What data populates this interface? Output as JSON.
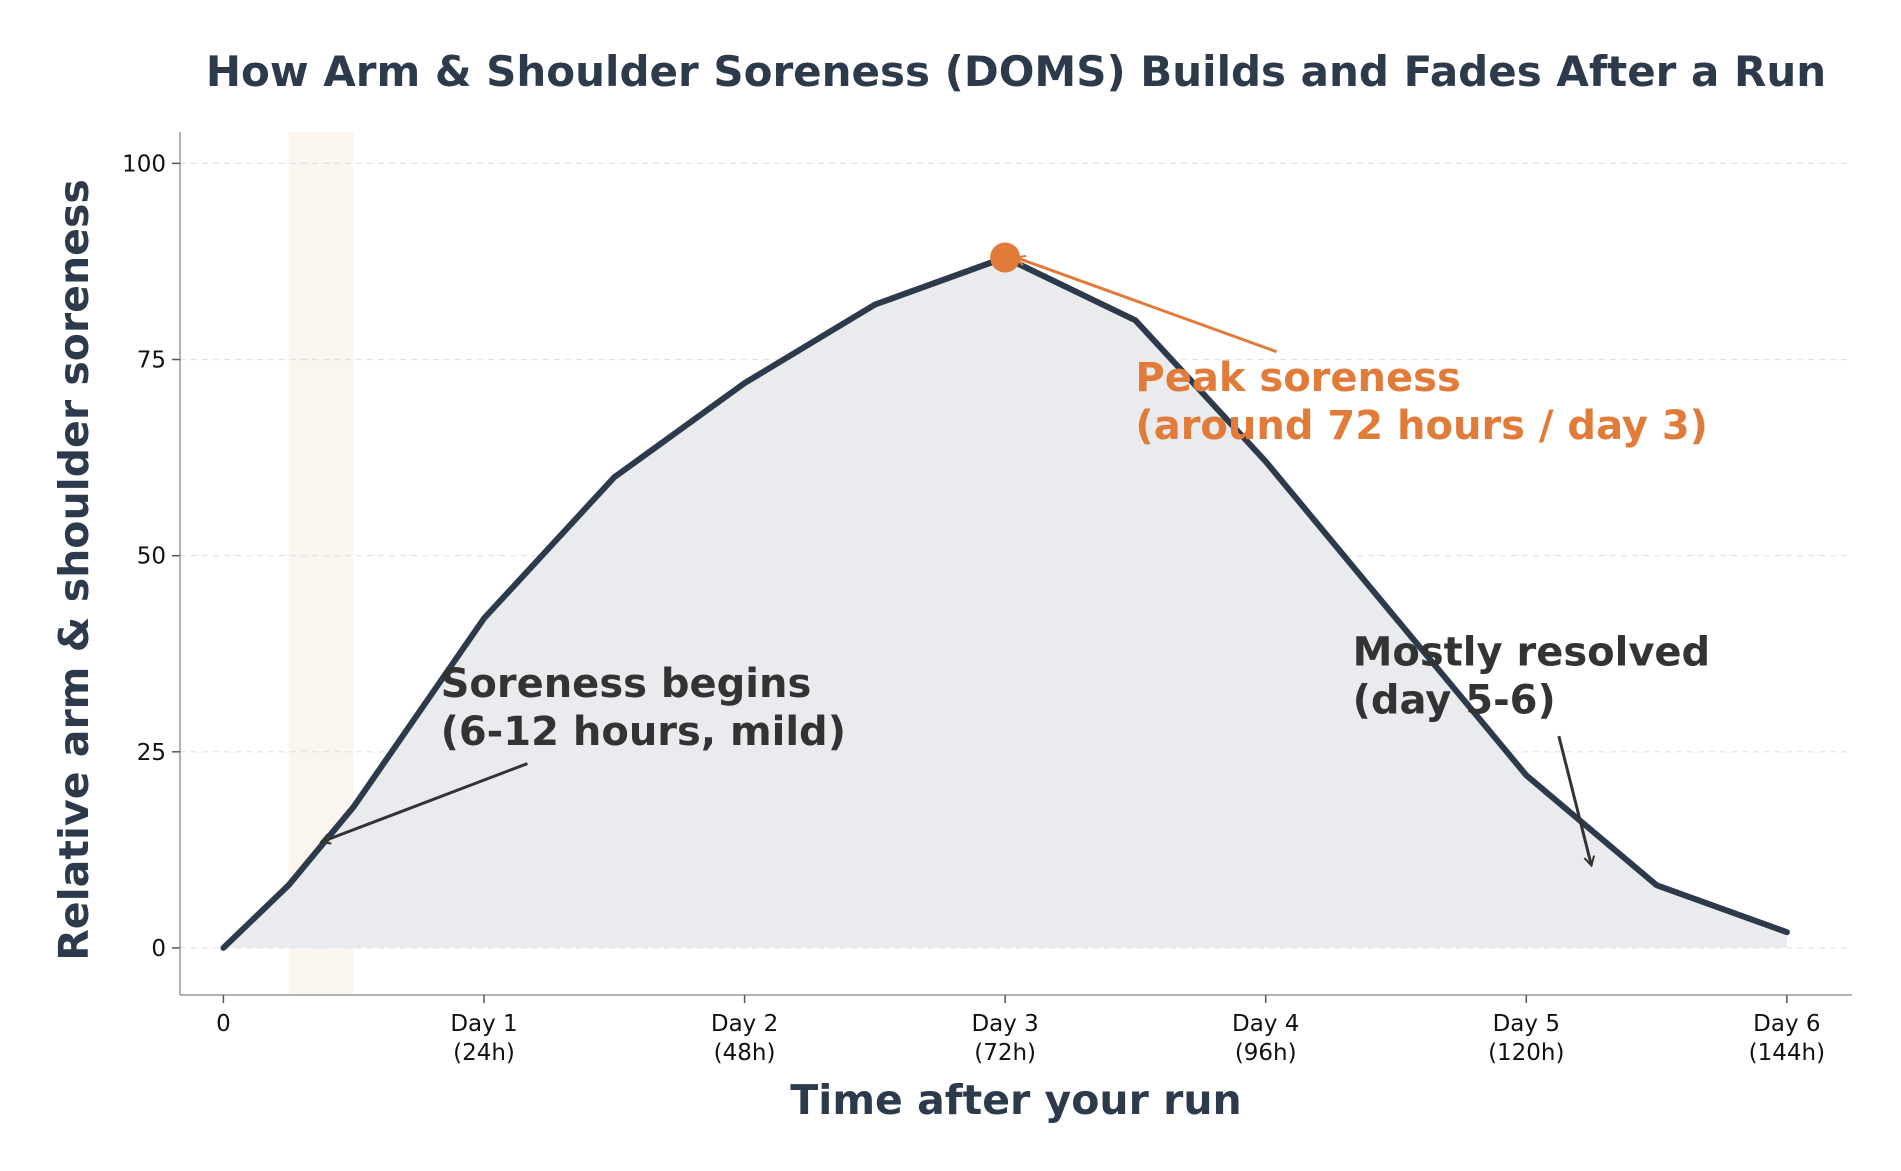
{
  "chart_data": {
    "type": "line",
    "title": "How Arm & Shoulder Soreness (DOMS) Builds and Fades After a Run",
    "xlabel": "Time after your run",
    "ylabel": "Relative arm & shoulder soreness",
    "x_unit": "hours",
    "xlim": [
      -4,
      150
    ],
    "ylim": [
      -6,
      104
    ],
    "x_ticks": [
      {
        "value": 0,
        "label": "0",
        "sub": ""
      },
      {
        "value": 24,
        "label": "Day 1",
        "sub": "(24h)"
      },
      {
        "value": 48,
        "label": "Day 2",
        "sub": "(48h)"
      },
      {
        "value": 72,
        "label": "Day 3",
        "sub": "(72h)"
      },
      {
        "value": 96,
        "label": "Day 4",
        "sub": "(96h)"
      },
      {
        "value": 120,
        "label": "Day 5",
        "sub": "(120h)"
      },
      {
        "value": 144,
        "label": "Day 6",
        "sub": "(144h)"
      }
    ],
    "y_ticks": [
      0,
      25,
      50,
      75,
      100
    ],
    "grid": "horizontal dashed",
    "series": [
      {
        "x": [
          0,
          6,
          12,
          24,
          36,
          48,
          60,
          72,
          84,
          96,
          108,
          120,
          132,
          144
        ],
        "y": [
          0,
          8,
          18,
          42,
          60,
          72,
          82,
          88,
          80,
          62,
          42,
          22,
          8,
          2
        ],
        "color": "#2d3a4b",
        "fill": "#e8eaed"
      }
    ],
    "shaded_band": {
      "x_start": 6,
      "x_end": 12,
      "color": "#fbf5ef"
    },
    "peak": {
      "x": 72,
      "y": 88,
      "color": "#e07b39"
    },
    "annotations": [
      {
        "line1": "Soreness begins",
        "line2": "(6-12 hours, mild)",
        "color": "#333333",
        "text_x": 20,
        "text_y": 32,
        "tail_x": 28,
        "tail_y": 23.5,
        "head_x": 9,
        "head_y": 13.5
      },
      {
        "line1": "Peak soreness",
        "line2": "(around 72 hours / day 3)",
        "color": "#e07b39",
        "text_x": 84,
        "text_y": 71,
        "tail_x": 97,
        "tail_y": 76,
        "head_x": 73,
        "head_y": 88
      },
      {
        "line1": "Mostly resolved",
        "line2": "(day 5-6)",
        "color": "#333333",
        "text_x": 104,
        "text_y": 36,
        "tail_x": 123,
        "tail_y": 27,
        "head_x": 126,
        "head_y": 10.5
      }
    ]
  }
}
